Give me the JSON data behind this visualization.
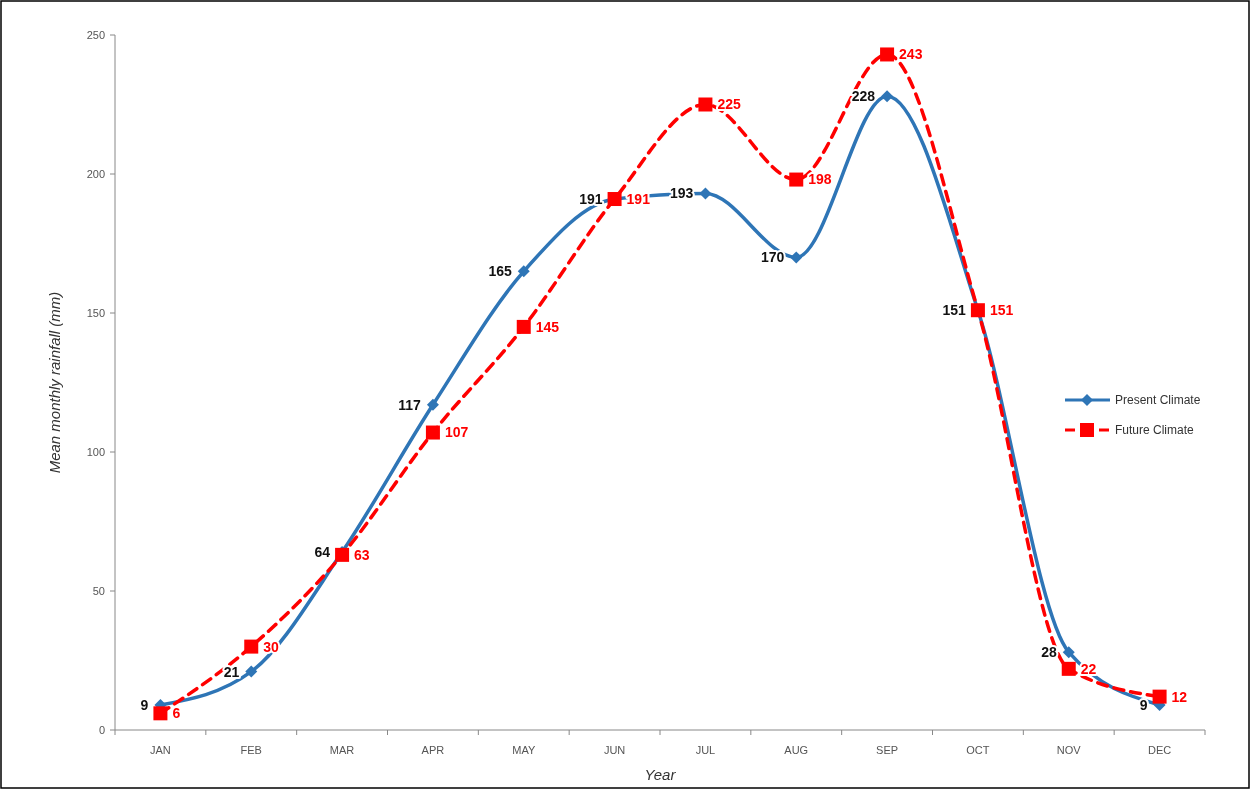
{
  "chart_data": {
    "type": "line",
    "xlabel": "Year",
    "ylabel": "Mean monthly rainfall (mm)",
    "categories": [
      "JAN",
      "FEB",
      "MAR",
      "APR",
      "MAY",
      "JUN",
      "JUL",
      "AUG",
      "SEP",
      "OCT",
      "NOV",
      "DEC"
    ],
    "series": [
      {
        "name": "Present Climate",
        "color": "#2e75b6",
        "marker": "diamond",
        "line_style": "solid",
        "values": [
          9,
          21,
          64,
          117,
          165,
          191,
          193,
          170,
          228,
          151,
          28,
          9
        ]
      },
      {
        "name": "Future Climate",
        "color": "#ff0000",
        "marker": "square",
        "line_style": "dashed",
        "values": [
          6,
          30,
          63,
          107,
          145,
          191,
          225,
          198,
          243,
          151,
          22,
          12
        ]
      }
    ],
    "ylim": [
      0,
      250
    ],
    "yticks": [
      0,
      50,
      100,
      150,
      200,
      250
    ],
    "grid": false,
    "legend": "right",
    "data_labels": true
  }
}
